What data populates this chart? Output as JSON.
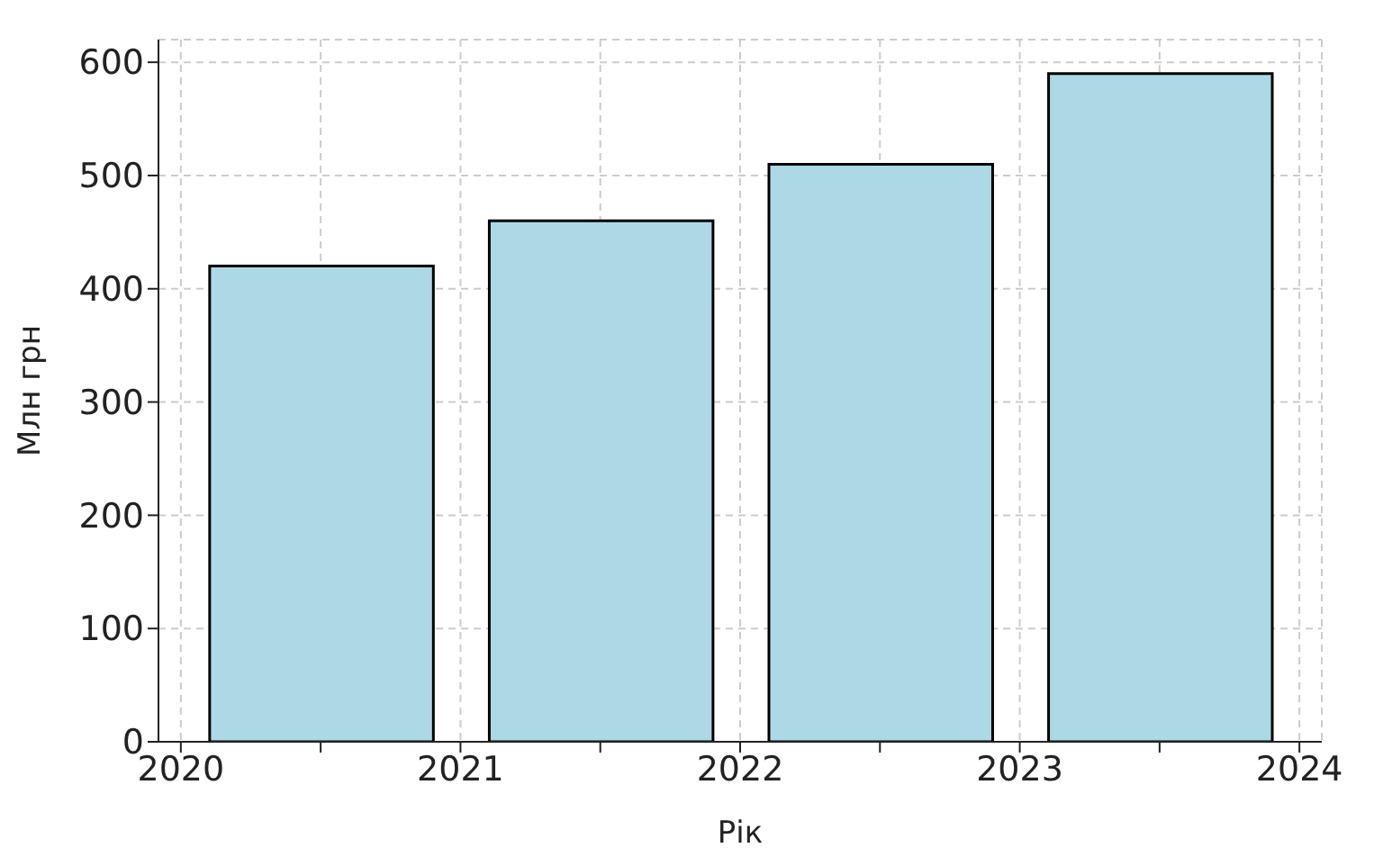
{
  "chart_data": {
    "type": "bar",
    "xlabel": "Рік",
    "ylabel": "Млн грн",
    "x": [
      2020.5,
      2021.5,
      2022.5,
      2023.5
    ],
    "values": [
      420,
      460,
      510,
      590
    ],
    "color": "#add8e6",
    "xlim": [
      2019.92,
      2024.08
    ],
    "xticks": [
      2020,
      {
        "value": 2020.5,
        "label": null
      },
      2021,
      {
        "value": 2021.5,
        "label": null
      },
      2022,
      {
        "value": 2022.5,
        "label": null
      },
      2023,
      {
        "value": 2023.5,
        "label": null
      },
      2024
    ],
    "ylim": [
      0,
      620
    ],
    "yticks": [
      0,
      100,
      200,
      300,
      400,
      500,
      600
    ],
    "grid": true
  }
}
